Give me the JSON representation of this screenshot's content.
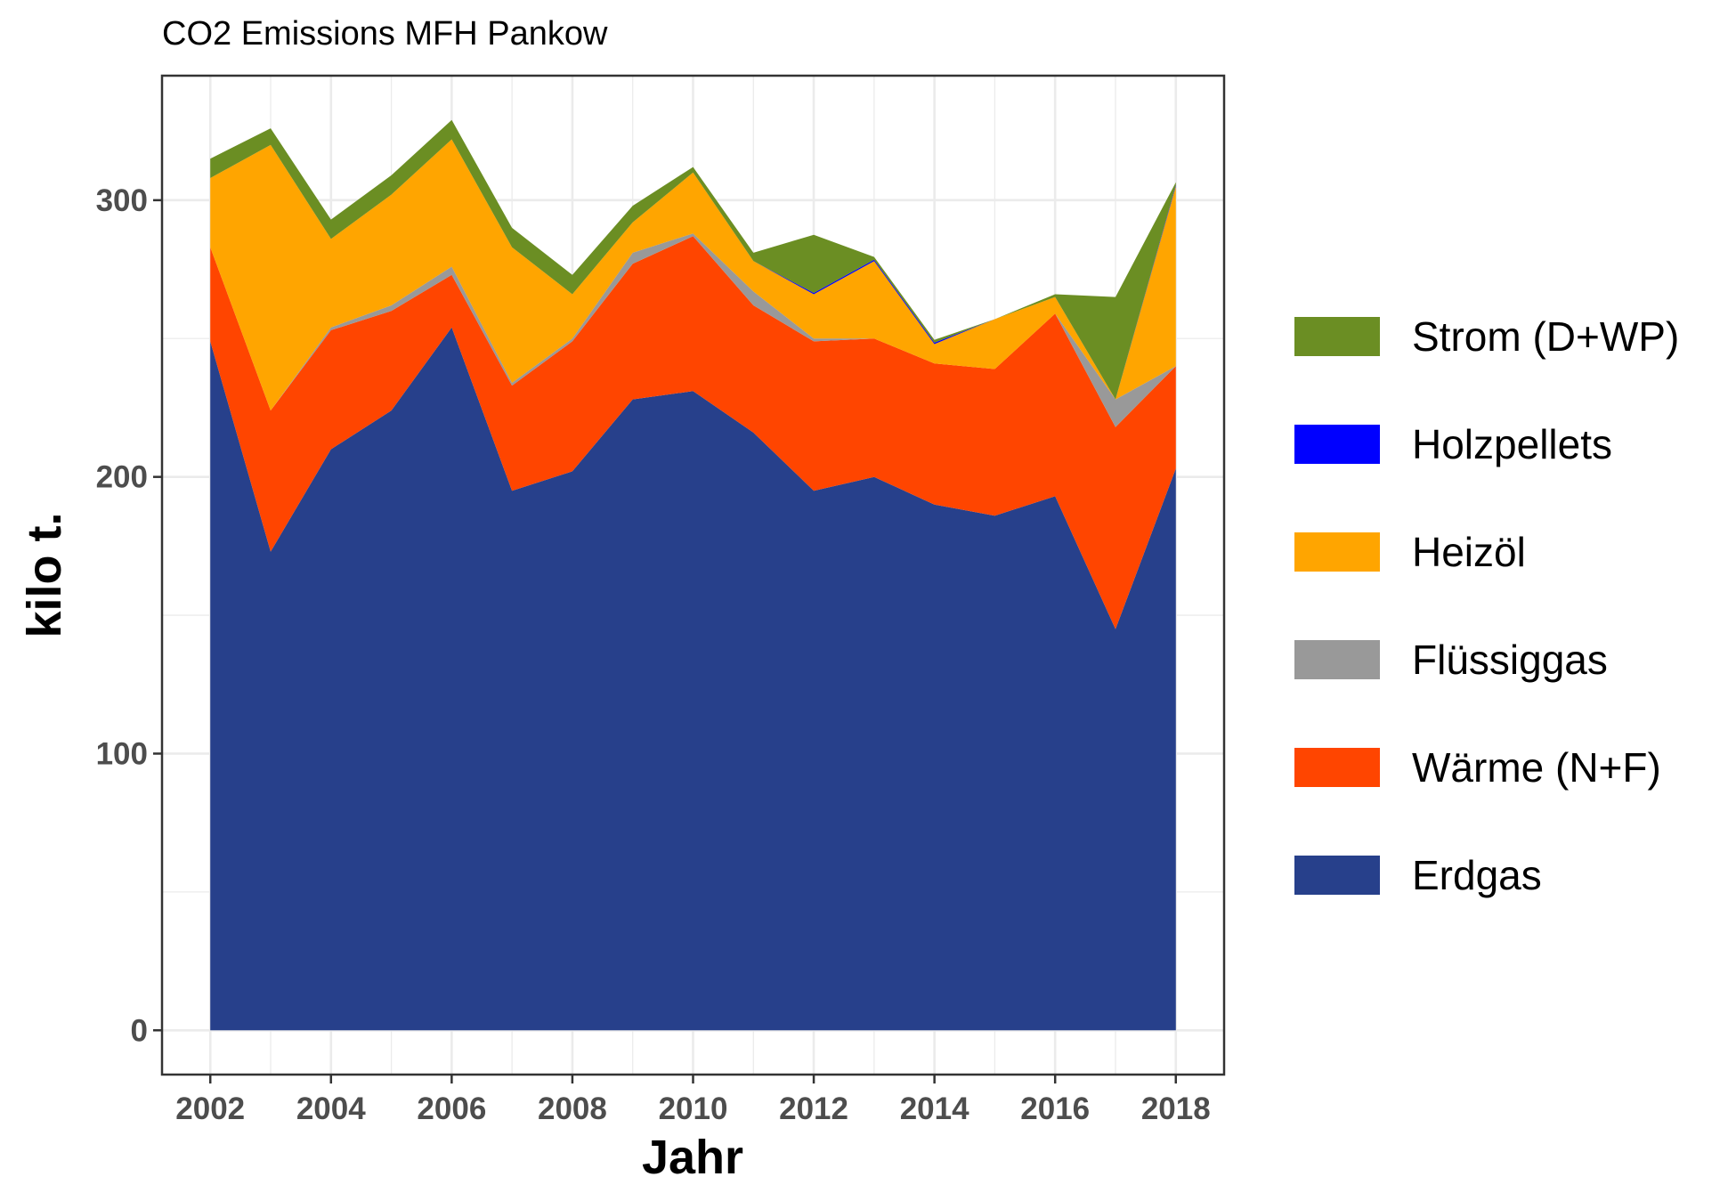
{
  "chart_data": {
    "type": "area",
    "stacked": true,
    "title": "CO2 Emissions MFH Pankow",
    "xlabel": "Jahr",
    "ylabel": "kilo t.",
    "x": [
      2002,
      2003,
      2004,
      2005,
      2006,
      2007,
      2008,
      2009,
      2010,
      2011,
      2012,
      2013,
      2014,
      2015,
      2016,
      2017,
      2018
    ],
    "xticks": [
      "2002",
      "2004",
      "2006",
      "2008",
      "2010",
      "2012",
      "2014",
      "2016",
      "2018"
    ],
    "xlim": [
      2001.2,
      2018.8
    ],
    "yticks": [
      "0",
      "100",
      "200",
      "300"
    ],
    "ylim": [
      -16,
      345
    ],
    "grid": true,
    "legend_position": "right",
    "series": [
      {
        "name": "Erdgas",
        "color": "#27408B",
        "values": [
          249,
          173,
          210,
          224,
          254,
          195,
          202,
          228,
          231,
          216,
          195,
          200,
          190,
          186,
          193,
          145,
          203
        ]
      },
      {
        "name": "Wärme (N+F)",
        "color": "#FF4500",
        "values": [
          34,
          51,
          43,
          36,
          19,
          38,
          47,
          49,
          56,
          46,
          54,
          50,
          51,
          53,
          66,
          73,
          37
        ]
      },
      {
        "name": "Flüssiggas",
        "color": "#999999",
        "values": [
          0,
          0,
          1,
          2,
          3,
          1,
          1,
          4,
          1,
          5,
          1,
          0,
          0,
          0,
          0,
          10,
          0
        ]
      },
      {
        "name": "Heizöl",
        "color": "#FFA500",
        "values": [
          25,
          96,
          32,
          40,
          46,
          49,
          16,
          11,
          22,
          11,
          16,
          28,
          7,
          18,
          6,
          0,
          65
        ]
      },
      {
        "name": "Holzpellets",
        "color": "#0000FF",
        "values": [
          0,
          0,
          0,
          0,
          0,
          0,
          0,
          0,
          0,
          0,
          0.5,
          0.5,
          0.5,
          0,
          0,
          0,
          0.5
        ]
      },
      {
        "name": "Strom (D+WP)",
        "color": "#6B8E23",
        "values": [
          7,
          6,
          7,
          7,
          7,
          7,
          7,
          6,
          2,
          3,
          21,
          1,
          1,
          0,
          1,
          37,
          1
        ]
      }
    ],
    "legend_order": [
      "Strom (D+WP)",
      "Holzpellets",
      "Heizöl",
      "Flüssiggas",
      "Wärme (N+F)",
      "Erdgas"
    ]
  }
}
